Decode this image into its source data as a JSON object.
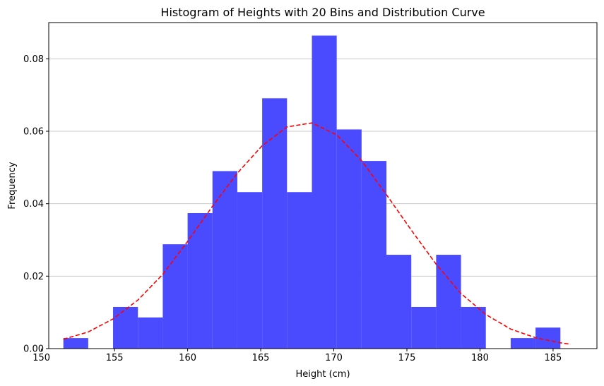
{
  "chart_data": {
    "type": "bar",
    "title": "Histogram of Heights with 20 Bins and Distribution Curve",
    "xlabel": "Height (cm)",
    "ylabel": "Frequency",
    "xlim": [
      150.5,
      188.0
    ],
    "ylim": [
      0,
      0.09
    ],
    "x_ticks": [
      150,
      155,
      160,
      165,
      170,
      175,
      180,
      185
    ],
    "y_ticks": [
      0.0,
      0.02,
      0.04,
      0.06,
      0.08
    ],
    "x_tick_labels": [
      "150",
      "155",
      "160",
      "165",
      "170",
      "175",
      "180",
      "185"
    ],
    "y_tick_labels": [
      "0.00",
      "0.02",
      "0.04",
      "0.06",
      "0.08"
    ],
    "grid": "y",
    "bar_color": "#4a4aff",
    "curve_color": "#ff0000",
    "bin_edges": [
      151.5,
      153.2,
      154.9,
      156.6,
      158.3,
      160.0,
      161.7,
      163.4,
      165.1,
      166.8,
      168.5,
      170.2,
      171.9,
      173.6,
      175.3,
      177.0,
      178.7,
      180.4,
      182.1,
      183.8,
      185.5
    ],
    "bar_values": [
      0.0029,
      0.0,
      0.0115,
      0.0086,
      0.0288,
      0.0374,
      0.049,
      0.0432,
      0.0691,
      0.0432,
      0.0864,
      0.0605,
      0.0518,
      0.0259,
      0.0115,
      0.0259,
      0.0115,
      0.0,
      0.0029,
      0.0058
    ],
    "series": [
      {
        "style": "dashed line",
        "x": [
          151.5,
          153.2,
          154.9,
          156.6,
          158.3,
          160.0,
          161.7,
          163.4,
          165.1,
          166.8,
          168.5,
          170.2,
          171.9,
          173.6,
          175.3,
          177.0,
          178.7,
          180.4,
          182.1,
          183.8,
          185.5,
          186.2
        ],
        "values": [
          0.0026,
          0.0046,
          0.0082,
          0.0134,
          0.0205,
          0.0296,
          0.0393,
          0.0484,
          0.056,
          0.0612,
          0.0623,
          0.059,
          0.0519,
          0.0425,
          0.0327,
          0.0233,
          0.0152,
          0.0094,
          0.0054,
          0.003,
          0.0016,
          0.0012
        ]
      }
    ]
  }
}
